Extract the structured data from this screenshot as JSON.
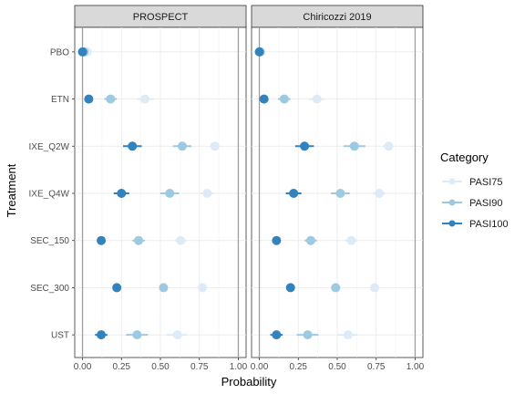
{
  "chart_data": {
    "type": "scatter",
    "xlabel": "Probability",
    "ylabel": "Treatment",
    "xlim": [
      -0.05,
      1.05
    ],
    "xticks": [
      0.0,
      0.25,
      0.5,
      0.75,
      1.0
    ],
    "xtick_labels": [
      "0.00",
      "0.25",
      "0.50",
      "0.75",
      "1.00"
    ],
    "vlines": [
      0,
      1
    ],
    "treatments": [
      "PBO",
      "ETN",
      "IXE_Q2W",
      "IXE_Q4W",
      "SEC_150",
      "SEC_300",
      "UST"
    ],
    "legend": {
      "title": "Category",
      "placement": "right",
      "entries": [
        "PASI75",
        "PASI90",
        "PASI100"
      ]
    },
    "colors": {
      "PASI75": "#deebf7",
      "PASI90": "#9ecae1",
      "PASI100": "#3182bd"
    },
    "panels": [
      {
        "title": "PROSPECT",
        "series": [
          {
            "name": "PASI75",
            "values": [
              {
                "t": "PBO",
                "x": 0.03,
                "lo": 0.02,
                "hi": 0.04
              },
              {
                "t": "ETN",
                "x": 0.4,
                "lo": 0.35,
                "hi": 0.46
              },
              {
                "t": "IXE_Q2W",
                "x": 0.85,
                "lo": 0.82,
                "hi": 0.88
              },
              {
                "t": "IXE_Q4W",
                "x": 0.8,
                "lo": 0.76,
                "hi": 0.84
              },
              {
                "t": "SEC_150",
                "x": 0.63,
                "lo": 0.59,
                "hi": 0.67
              },
              {
                "t": "SEC_300",
                "x": 0.77,
                "lo": 0.75,
                "hi": 0.79
              },
              {
                "t": "UST",
                "x": 0.61,
                "lo": 0.54,
                "hi": 0.67
              }
            ]
          },
          {
            "name": "PASI90",
            "values": [
              {
                "t": "PBO",
                "x": 0.01,
                "lo": 0.005,
                "hi": 0.015
              },
              {
                "t": "ETN",
                "x": 0.18,
                "lo": 0.14,
                "hi": 0.22
              },
              {
                "t": "IXE_Q2W",
                "x": 0.64,
                "lo": 0.58,
                "hi": 0.7
              },
              {
                "t": "IXE_Q4W",
                "x": 0.56,
                "lo": 0.5,
                "hi": 0.62
              },
              {
                "t": "SEC_150",
                "x": 0.36,
                "lo": 0.32,
                "hi": 0.4
              },
              {
                "t": "SEC_300",
                "x": 0.52,
                "lo": 0.5,
                "hi": 0.54
              },
              {
                "t": "UST",
                "x": 0.35,
                "lo": 0.28,
                "hi": 0.42
              }
            ]
          },
          {
            "name": "PASI100",
            "values": [
              {
                "t": "PBO",
                "x": 0.0,
                "lo": -0.005,
                "hi": 0.005
              },
              {
                "t": "ETN",
                "x": 0.04,
                "lo": 0.02,
                "hi": 0.06
              },
              {
                "t": "IXE_Q2W",
                "x": 0.32,
                "lo": 0.26,
                "hi": 0.38
              },
              {
                "t": "IXE_Q4W",
                "x": 0.25,
                "lo": 0.2,
                "hi": 0.3
              },
              {
                "t": "SEC_150",
                "x": 0.12,
                "lo": 0.1,
                "hi": 0.14
              },
              {
                "t": "SEC_300",
                "x": 0.22,
                "lo": 0.21,
                "hi": 0.23
              },
              {
                "t": "UST",
                "x": 0.12,
                "lo": 0.08,
                "hi": 0.16
              }
            ]
          }
        ]
      },
      {
        "title": "Chiricozzi 2019",
        "series": [
          {
            "name": "PASI75",
            "values": [
              {
                "t": "PBO",
                "x": 0.01,
                "lo": 0.005,
                "hi": 0.015
              },
              {
                "t": "ETN",
                "x": 0.37,
                "lo": 0.32,
                "hi": 0.42
              },
              {
                "t": "IXE_Q2W",
                "x": 0.83,
                "lo": 0.79,
                "hi": 0.86
              },
              {
                "t": "IXE_Q4W",
                "x": 0.77,
                "lo": 0.73,
                "hi": 0.81
              },
              {
                "t": "SEC_150",
                "x": 0.59,
                "lo": 0.55,
                "hi": 0.63
              },
              {
                "t": "SEC_300",
                "x": 0.74,
                "lo": 0.71,
                "hi": 0.77
              },
              {
                "t": "UST",
                "x": 0.57,
                "lo": 0.5,
                "hi": 0.63
              }
            ]
          },
          {
            "name": "PASI90",
            "values": [
              {
                "t": "PBO",
                "x": 0.005,
                "lo": 0.0,
                "hi": 0.01
              },
              {
                "t": "ETN",
                "x": 0.16,
                "lo": 0.12,
                "hi": 0.2
              },
              {
                "t": "IXE_Q2W",
                "x": 0.61,
                "lo": 0.54,
                "hi": 0.68
              },
              {
                "t": "IXE_Q4W",
                "x": 0.52,
                "lo": 0.46,
                "hi": 0.58
              },
              {
                "t": "SEC_150",
                "x": 0.33,
                "lo": 0.29,
                "hi": 0.37
              },
              {
                "t": "SEC_300",
                "x": 0.49,
                "lo": 0.46,
                "hi": 0.52
              },
              {
                "t": "UST",
                "x": 0.31,
                "lo": 0.24,
                "hi": 0.38
              }
            ]
          },
          {
            "name": "PASI100",
            "values": [
              {
                "t": "PBO",
                "x": 0.0,
                "lo": -0.005,
                "hi": 0.005
              },
              {
                "t": "ETN",
                "x": 0.03,
                "lo": 0.01,
                "hi": 0.05
              },
              {
                "t": "IXE_Q2W",
                "x": 0.29,
                "lo": 0.23,
                "hi": 0.35
              },
              {
                "t": "IXE_Q4W",
                "x": 0.22,
                "lo": 0.17,
                "hi": 0.27
              },
              {
                "t": "SEC_150",
                "x": 0.11,
                "lo": 0.09,
                "hi": 0.13
              },
              {
                "t": "SEC_300",
                "x": 0.2,
                "lo": 0.18,
                "hi": 0.22
              },
              {
                "t": "UST",
                "x": 0.11,
                "lo": 0.07,
                "hi": 0.15
              }
            ]
          }
        ]
      }
    ]
  }
}
